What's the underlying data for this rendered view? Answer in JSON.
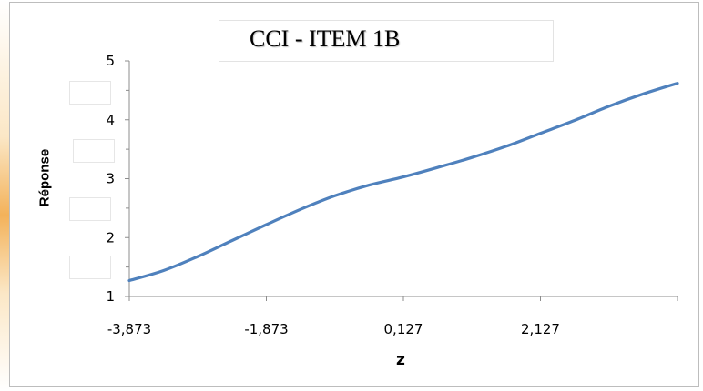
{
  "chart_data": {
    "type": "line",
    "title": "CCI - ITEM 1B",
    "xlabel": "z",
    "ylabel": "Réponse",
    "x_tick_labels": [
      "-3,873",
      "-1,873",
      "0,127",
      "2,127"
    ],
    "x_ticks": [
      -3.873,
      -1.873,
      0.127,
      2.127
    ],
    "y_tick_labels": [
      "1",
      "2",
      "3",
      "4",
      "5"
    ],
    "y_ticks": [
      1,
      2,
      3,
      4,
      5
    ],
    "xlim": [
      -3.873,
      4.127
    ],
    "ylim": [
      1,
      5
    ],
    "grid": false,
    "legend": "none",
    "series": [
      {
        "color": "#4f81bd",
        "x": [
          -3.873,
          -3.373,
          -2.873,
          -2.373,
          -1.873,
          -1.373,
          -0.873,
          -0.373,
          0.127,
          0.627,
          1.127,
          1.627,
          2.127,
          2.627,
          3.127,
          3.627,
          4.127
        ],
        "y": [
          1.27,
          1.44,
          1.68,
          1.95,
          2.22,
          2.48,
          2.71,
          2.89,
          3.03,
          3.19,
          3.36,
          3.55,
          3.77,
          3.99,
          4.23,
          4.44,
          4.62
        ]
      }
    ]
  }
}
